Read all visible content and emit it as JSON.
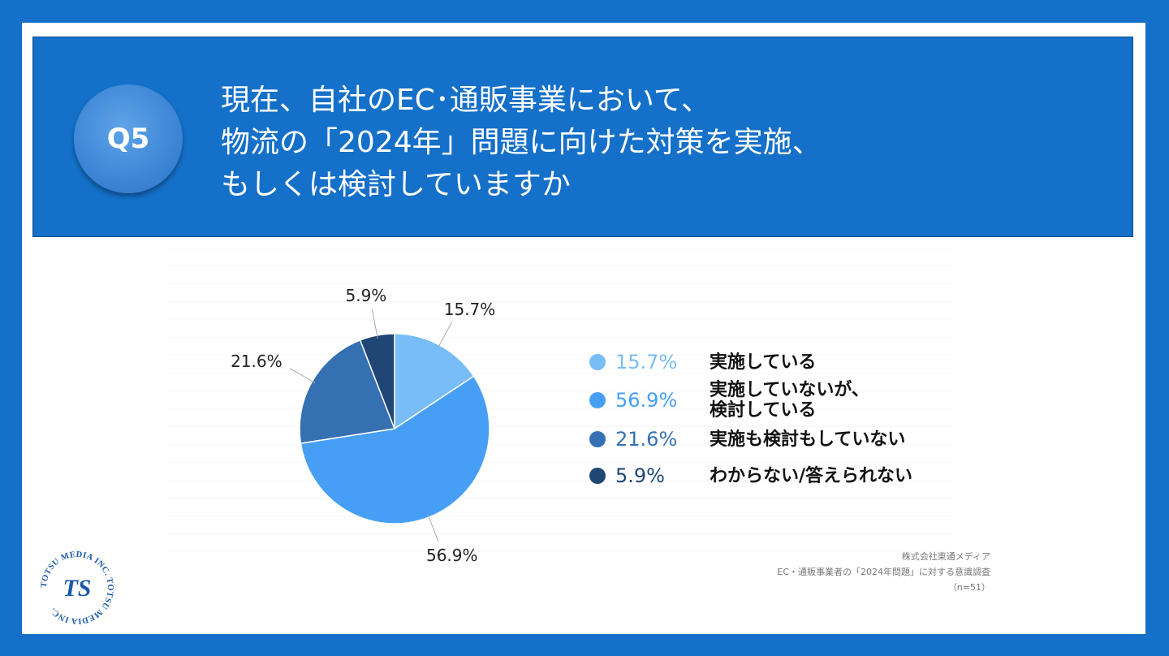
{
  "header": {
    "badge": "Q5",
    "title_lines": [
      "現在、自社のEC･通販事業において、",
      "物流の「2024年」問題に向けた対策を実施、",
      "もしくは検討していますか"
    ]
  },
  "chart_data": {
    "type": "pie",
    "slices": [
      {
        "label_lines": [
          "実施している"
        ],
        "value": 15.7,
        "value_text": "15.7%",
        "color": "#78bdf7"
      },
      {
        "label_lines": [
          "実施していないが、",
          "検討している"
        ],
        "value": 56.9,
        "value_text": "56.9%",
        "color": "#479ff5"
      },
      {
        "label_lines": [
          "実施も検討もしていない"
        ],
        "value": 21.6,
        "value_text": "21.6%",
        "color": "#3570b3"
      },
      {
        "label_lines": [
          "わからない/答えられない"
        ],
        "value": 5.9,
        "value_text": "5.9%",
        "color": "#1f4675"
      }
    ],
    "start_angle_deg": 0,
    "direction": "clockwise",
    "legend_position": "right"
  },
  "source": {
    "lines": [
      "株式会社東通メディア",
      "EC・通販事業者の「2024年問題」に対する意識調査",
      "（n=51）"
    ]
  },
  "logo": {
    "text": "TOTSU MEDIA INC. TOTSU MEDIA INC.",
    "mark": "TS",
    "color": "#1a5aa8"
  }
}
